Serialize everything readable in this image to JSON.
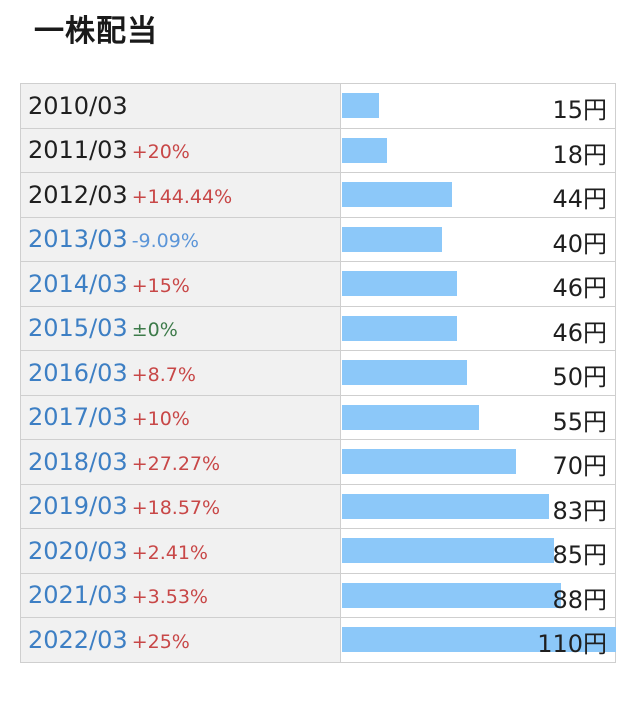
{
  "header": {
    "title": "一株配当"
  },
  "currency_suffix": "円",
  "colors": {
    "bar": "#8cc8f9",
    "up": "#c84747",
    "down": "#5b95d8",
    "flat": "#3d7b4a",
    "link": "#3d7fc4"
  },
  "rows": [
    {
      "period": "2010/03",
      "change": "",
      "direction": "",
      "year_style": "dark",
      "value": 15,
      "amount": "15円"
    },
    {
      "period": "2011/03",
      "change": "+20%",
      "direction": "up",
      "year_style": "dark",
      "value": 18,
      "amount": "18円"
    },
    {
      "period": "2012/03",
      "change": "+144.44%",
      "direction": "up",
      "year_style": "dark",
      "value": 44,
      "amount": "44円"
    },
    {
      "period": "2013/03",
      "change": "-9.09%",
      "direction": "down",
      "year_style": "link",
      "value": 40,
      "amount": "40円"
    },
    {
      "period": "2014/03",
      "change": "+15%",
      "direction": "up",
      "year_style": "link",
      "value": 46,
      "amount": "46円"
    },
    {
      "period": "2015/03",
      "change": "±0%",
      "direction": "flat",
      "year_style": "link",
      "value": 46,
      "amount": "46円"
    },
    {
      "period": "2016/03",
      "change": "+8.7%",
      "direction": "up",
      "year_style": "link",
      "value": 50,
      "amount": "50円"
    },
    {
      "period": "2017/03",
      "change": "+10%",
      "direction": "up",
      "year_style": "link",
      "value": 55,
      "amount": "55円"
    },
    {
      "period": "2018/03",
      "change": "+27.27%",
      "direction": "up",
      "year_style": "link",
      "value": 70,
      "amount": "70円"
    },
    {
      "period": "2019/03",
      "change": "+18.57%",
      "direction": "up",
      "year_style": "link",
      "value": 83,
      "amount": "83円"
    },
    {
      "period": "2020/03",
      "change": "+2.41%",
      "direction": "up",
      "year_style": "link",
      "value": 85,
      "amount": "85円"
    },
    {
      "period": "2021/03",
      "change": "+3.53%",
      "direction": "up",
      "year_style": "link",
      "value": 88,
      "amount": "88円"
    },
    {
      "period": "2022/03",
      "change": "+25%",
      "direction": "up",
      "year_style": "link",
      "value": 110,
      "amount": "110円"
    }
  ],
  "chart_data": {
    "type": "bar",
    "title": "一株配当",
    "categories": [
      "2010/03",
      "2011/03",
      "2012/03",
      "2013/03",
      "2014/03",
      "2015/03",
      "2016/03",
      "2017/03",
      "2018/03",
      "2019/03",
      "2020/03",
      "2021/03",
      "2022/03"
    ],
    "values": [
      15,
      18,
      44,
      40,
      46,
      46,
      50,
      55,
      70,
      83,
      85,
      88,
      110
    ],
    "changes": [
      "",
      "+20%",
      "+144.44%",
      "-9.09%",
      "+15%",
      "±0%",
      "+8.7%",
      "+10%",
      "+27.27%",
      "+18.57%",
      "+2.41%",
      "+3.53%",
      "+25%"
    ],
    "orientation": "horizontal",
    "xlim": [
      0,
      110
    ],
    "grid": false
  }
}
